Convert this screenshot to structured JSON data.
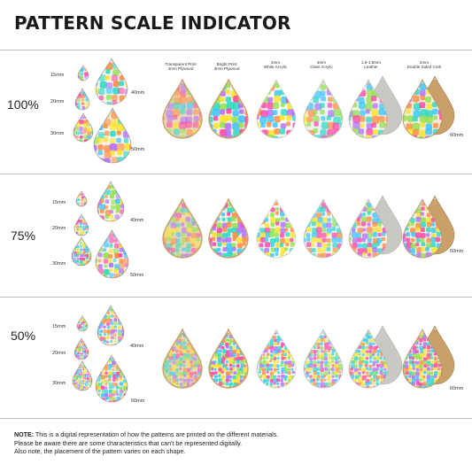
{
  "title": "PATTERN SCALE INDICATOR",
  "rows": [
    {
      "scale": "100%"
    },
    {
      "scale": "75%"
    },
    {
      "scale": "50%"
    }
  ],
  "sizes": {
    "s15": "15mm",
    "s20": "20mm",
    "s30": "30mm",
    "s40": "40mm",
    "s50": "50mm",
    "s60": "60mm"
  },
  "materials": [
    {
      "line1": "Transparent Print",
      "line2": "3mm Plywood"
    },
    {
      "line1": "Bright Print",
      "line2": "3mm Plywood"
    },
    {
      "line1": "3mm",
      "line2": "White Acrylic"
    },
    {
      "line1": "3mm",
      "line2": "Clear Acrylic"
    },
    {
      "line1": "1.6-1.8mm",
      "line2": "Leather"
    },
    {
      "line1": "2mm",
      "line2": "Double Sided Cork"
    }
  ],
  "note": {
    "label": "NOTE:",
    "line1": " This is a digital representation of how the patterns are printed on the different materials.",
    "line2": "Please be aware there are some characteristics that can't be represented digitally.",
    "line3": "Also note, the placement of the pattern varies on each shape."
  },
  "colors": {
    "pattern": [
      "#ff3fa4",
      "#ffe21f",
      "#35c4ff",
      "#8fe04a",
      "#b06cff",
      "#ff8a3d",
      "#27d8c3"
    ],
    "leather": "#c9c9c4",
    "cork": "#c9a06a",
    "plywood_edge": "#c8a16b"
  }
}
